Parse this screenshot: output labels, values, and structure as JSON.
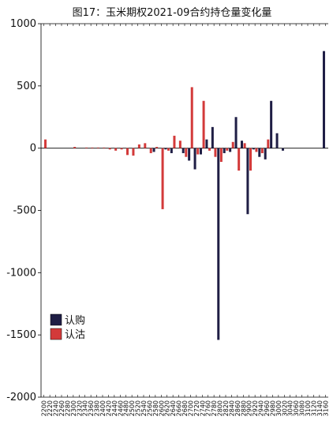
{
  "chart_data": {
    "type": "bar",
    "title": "图17：玉米期权2021-09合约持仓量变化量",
    "xlabel": "",
    "ylabel": "",
    "ylim": [
      -2000,
      1000
    ],
    "yticks": [
      "1000",
      "500",
      "0",
      "-500",
      "-1000",
      "-1500",
      "-2000"
    ],
    "ytick_values": [
      1000,
      500,
      0,
      -500,
      -1000,
      -1500,
      -2000
    ],
    "categories": [
      "2200",
      "2220",
      "2240",
      "2260",
      "2280",
      "2300",
      "2320",
      "2340",
      "2360",
      "2380",
      "2400",
      "2420",
      "2440",
      "2460",
      "2480",
      "2500",
      "2520",
      "2540",
      "2560",
      "2580",
      "2600",
      "2620",
      "2640",
      "2660",
      "2680",
      "2700",
      "2720",
      "2740",
      "2760",
      "2780",
      "2800",
      "2820",
      "2840",
      "2860",
      "2880",
      "2900",
      "2920",
      "2940",
      "2960",
      "2980",
      "3000",
      "3020",
      "3040",
      "3060",
      "3080",
      "3100",
      "3120",
      "3140",
      "3160"
    ],
    "legend_position": "bottom-left",
    "grid": false,
    "series": [
      {
        "name": "认购",
        "color": "#1f1e45",
        "values": [
          0,
          0,
          0,
          0,
          0,
          0,
          0,
          0,
          0,
          0,
          0,
          0,
          0,
          0,
          0,
          0,
          0,
          0,
          0,
          -30,
          0,
          -10,
          -40,
          0,
          -40,
          -100,
          -170,
          -50,
          70,
          170,
          -1540,
          -40,
          -30,
          250,
          60,
          -530,
          -10,
          -70,
          -90,
          380,
          120,
          -20,
          0,
          0,
          0,
          0,
          0,
          0,
          780
        ]
      },
      {
        "name": "认沽",
        "color": "#d33a3a",
        "values": [
          70,
          0,
          0,
          0,
          0,
          10,
          0,
          5,
          5,
          5,
          5,
          -10,
          -20,
          -10,
          -55,
          -60,
          30,
          40,
          -40,
          10,
          -490,
          -20,
          100,
          60,
          -70,
          490,
          -50,
          380,
          -20,
          -70,
          -110,
          -20,
          50,
          -180,
          40,
          -180,
          -30,
          -40,
          70,
          0,
          0,
          0,
          0,
          0,
          0,
          0,
          0,
          0,
          0
        ]
      }
    ]
  }
}
